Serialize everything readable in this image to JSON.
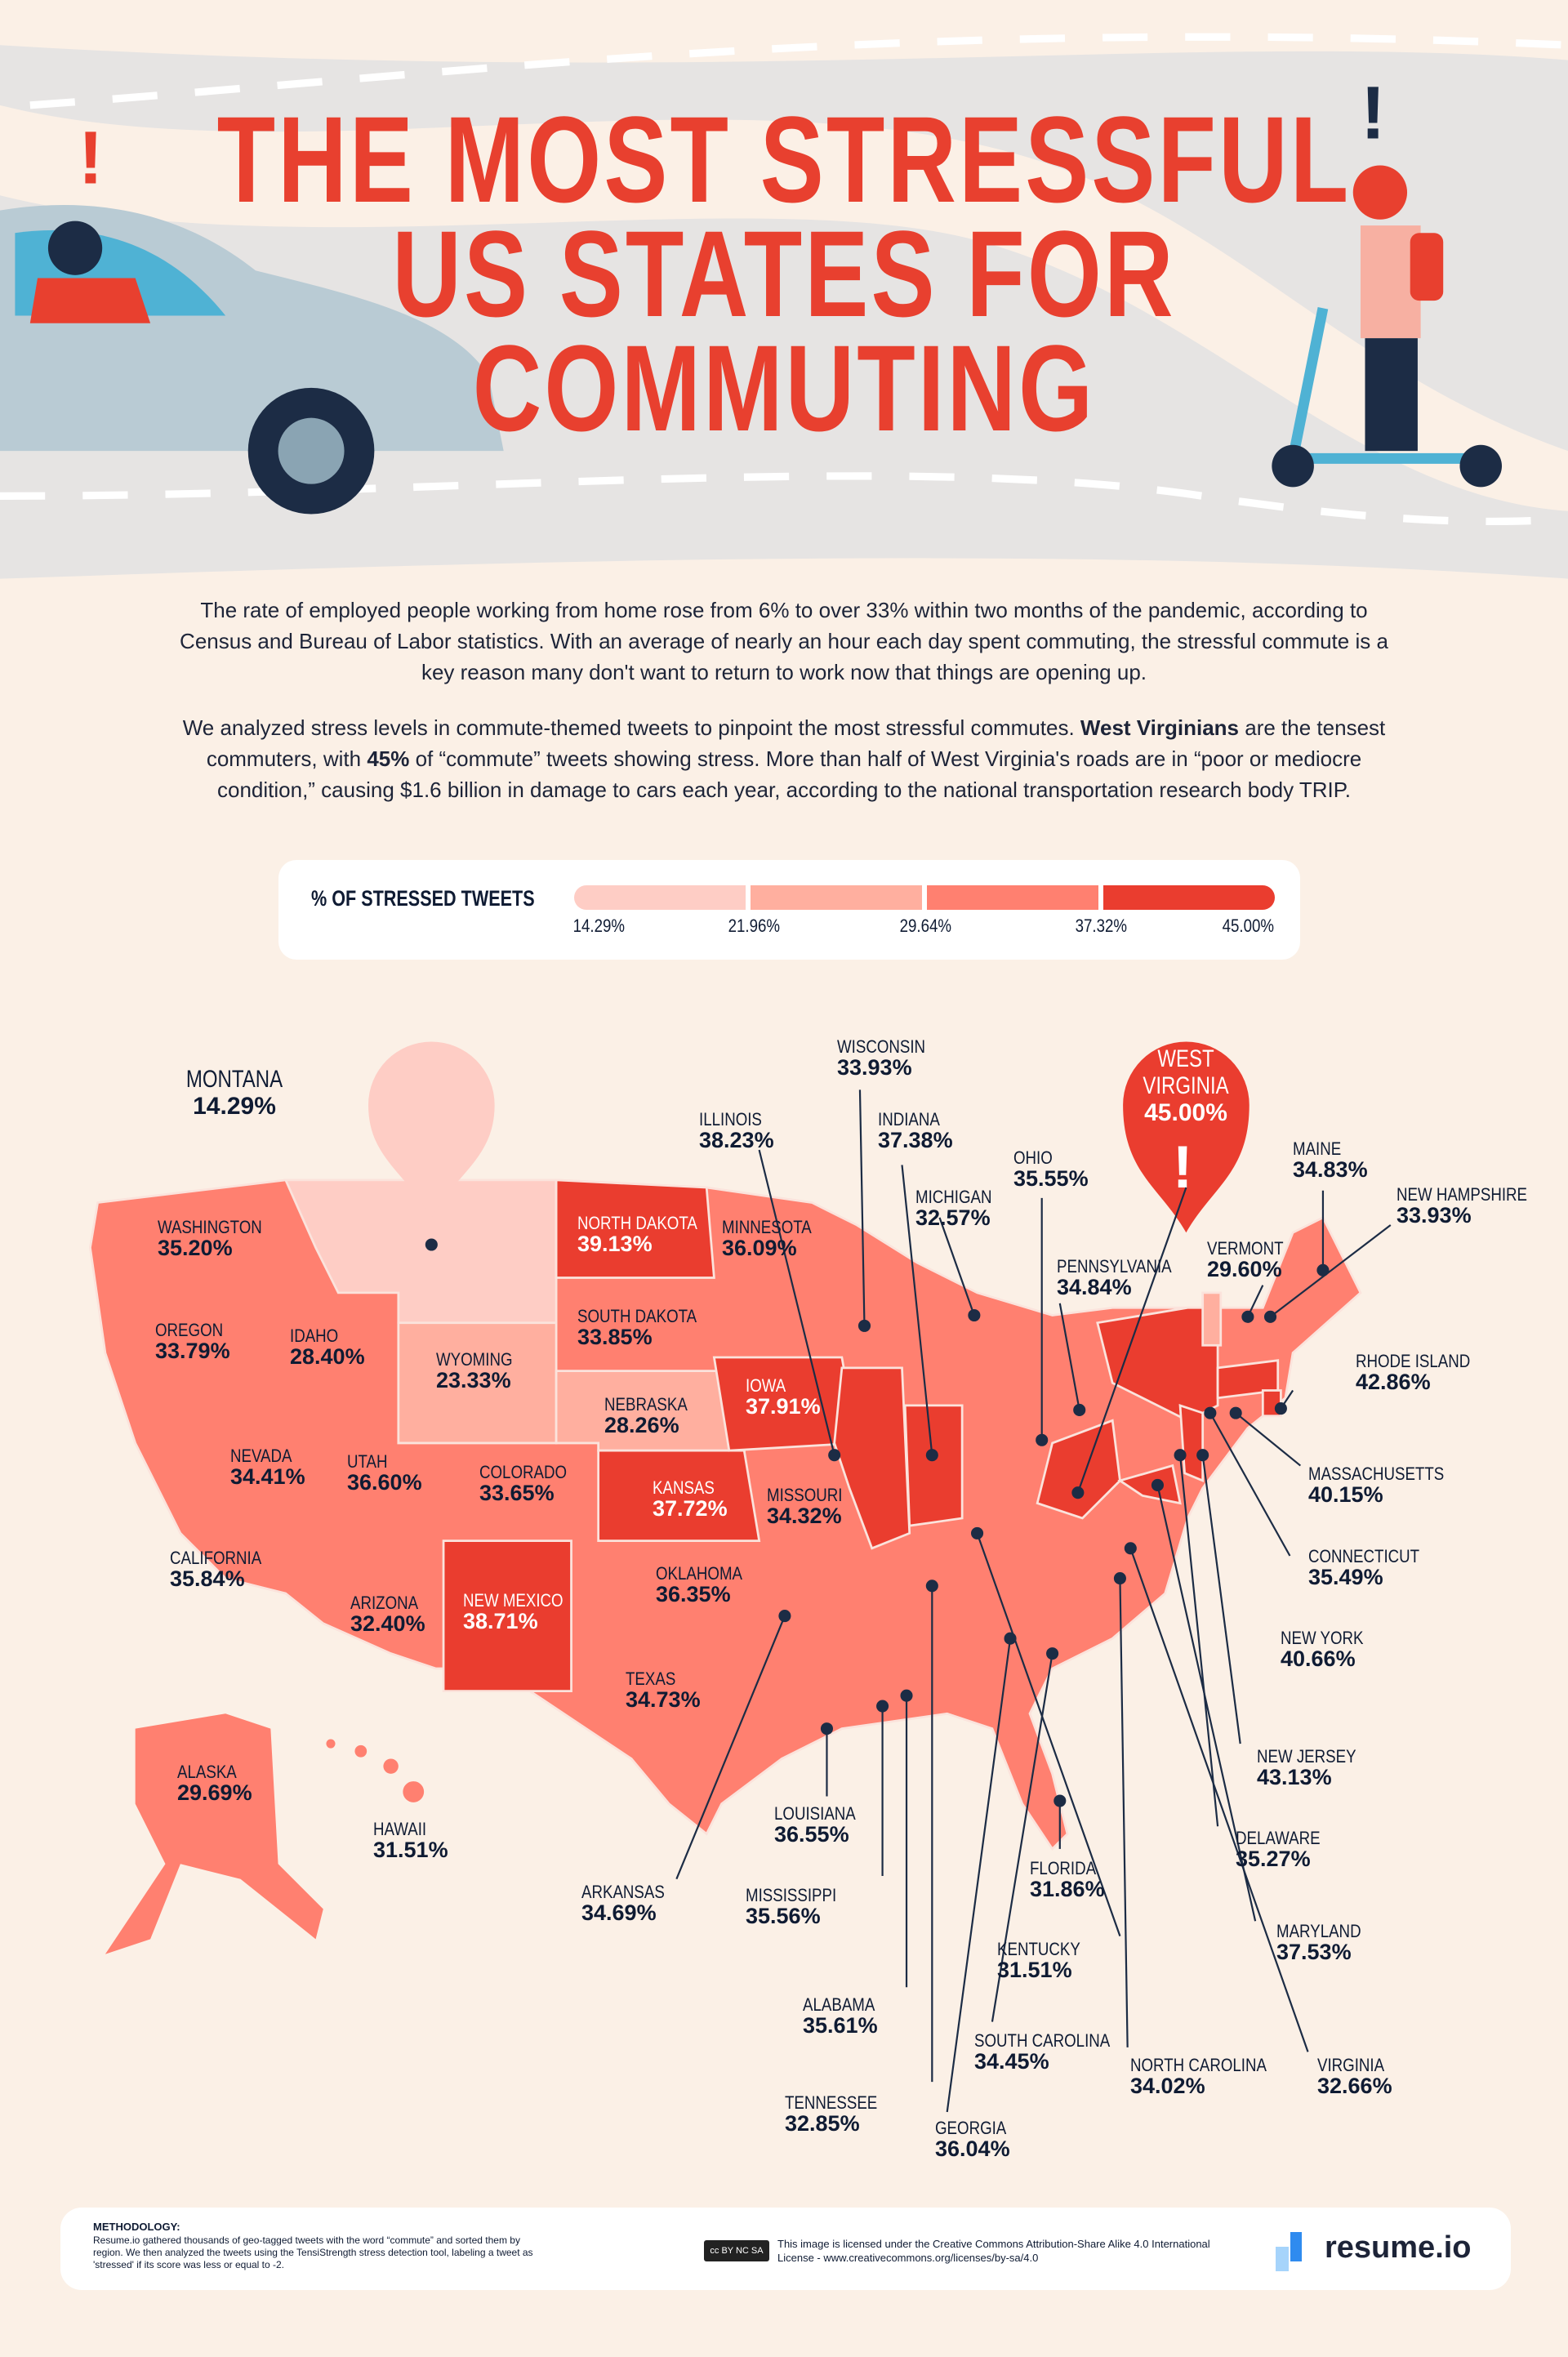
{
  "header": {
    "title_lines": [
      "THE MOST STRESSFUL",
      "US STATES FOR",
      "COMMUTING"
    ],
    "alert_icon": "exclamation-icon"
  },
  "intro": {
    "paragraph1": "The rate of employed people working from home rose from 6% to over 33% within two months of the pandemic, according to Census and Bureau of Labor statistics. With an average of nearly an hour each day spent commuting, the stressful commute is a key reason many don't want to return to work now that things are opening up.",
    "paragraph2_parts": [
      "We analyzed stress levels in commute-themed tweets to pinpoint the most stressful commutes. ",
      "West Virginians",
      " are the tensest commuters, with ",
      "45%",
      " of “commute” tweets showing stress. More than half of West Virginia's roads are in “poor or mediocre condition,” causing $1.6 billion in damage to cars each year, according to the national transportation research body TRIP."
    ]
  },
  "legend": {
    "title": "% OF STRESSED TWEETS",
    "ticks": [
      "14.29%",
      "21.96%",
      "29.64%",
      "37.32%",
      "45.00%"
    ],
    "colors": [
      "#fecdc5",
      "#ffaf9f",
      "#ff8070",
      "#ea3d2f"
    ]
  },
  "colors": {
    "background": "#fbf0e6",
    "title": "#e8402f",
    "road": "#dfe0e2",
    "map_default": "#ff8070",
    "dark": "#ea3d2f",
    "light": "#fecdc5",
    "mid_light": "#ffaf9f",
    "text": "#0f1b33"
  },
  "states": [
    {
      "name": "MONTANA",
      "value": "14.29%"
    },
    {
      "name": "WASHINGTON",
      "value": "35.20%"
    },
    {
      "name": "OREGON",
      "value": "33.79%"
    },
    {
      "name": "IDAHO",
      "value": "28.40%"
    },
    {
      "name": "WYOMING",
      "value": "23.33%"
    },
    {
      "name": "NEVADA",
      "value": "34.41%"
    },
    {
      "name": "UTAH",
      "value": "36.60%"
    },
    {
      "name": "COLORADO",
      "value": "33.65%"
    },
    {
      "name": "CALIFORNIA",
      "value": "35.84%"
    },
    {
      "name": "ARIZONA",
      "value": "32.40%"
    },
    {
      "name": "NEW MEXICO",
      "value": "38.71%"
    },
    {
      "name": "NORTH DAKOTA",
      "value": "39.13%"
    },
    {
      "name": "SOUTH DAKOTA",
      "value": "33.85%"
    },
    {
      "name": "NEBRASKA",
      "value": "28.26%"
    },
    {
      "name": "KANSAS",
      "value": "37.72%"
    },
    {
      "name": "OKLAHOMA",
      "value": "36.35%"
    },
    {
      "name": "TEXAS",
      "value": "34.73%"
    },
    {
      "name": "MINNESOTA",
      "value": "36.09%"
    },
    {
      "name": "IOWA",
      "value": "37.91%"
    },
    {
      "name": "MISSOURI",
      "value": "34.32%"
    },
    {
      "name": "WISCONSIN",
      "value": "33.93%"
    },
    {
      "name": "ILLINOIS",
      "value": "38.23%"
    },
    {
      "name": "INDIANA",
      "value": "37.38%"
    },
    {
      "name": "MICHIGAN",
      "value": "32.57%"
    },
    {
      "name": "OHIO",
      "value": "35.55%"
    },
    {
      "name": "PENNSYLVANIA",
      "value": "34.84%"
    },
    {
      "name": "WEST VIRGINIA",
      "value": "45.00%"
    },
    {
      "name": "MAINE",
      "value": "34.83%"
    },
    {
      "name": "NEW HAMPSHIRE",
      "value": "33.93%"
    },
    {
      "name": "VERMONT",
      "value": "29.60%"
    },
    {
      "name": "RHODE ISLAND",
      "value": "42.86%"
    },
    {
      "name": "MASSACHUSETTS",
      "value": "40.15%"
    },
    {
      "name": "CONNECTICUT",
      "value": "35.49%"
    },
    {
      "name": "NEW YORK",
      "value": "40.66%"
    },
    {
      "name": "NEW JERSEY",
      "value": "43.13%"
    },
    {
      "name": "DELAWARE",
      "value": "35.27%"
    },
    {
      "name": "MARYLAND",
      "value": "37.53%"
    },
    {
      "name": "VIRGINIA",
      "value": "32.66%"
    },
    {
      "name": "NORTH CAROLINA",
      "value": "34.02%"
    },
    {
      "name": "SOUTH CAROLINA",
      "value": "34.45%"
    },
    {
      "name": "KENTUCKY",
      "value": "31.51%"
    },
    {
      "name": "FLORIDA",
      "value": "31.86%"
    },
    {
      "name": "GEORGIA",
      "value": "36.04%"
    },
    {
      "name": "TENNESSEE",
      "value": "32.85%"
    },
    {
      "name": "ALABAMA",
      "value": "35.61%"
    },
    {
      "name": "MISSISSIPPI",
      "value": "35.56%"
    },
    {
      "name": "LOUISIANA",
      "value": "36.55%"
    },
    {
      "name": "ARKANSAS",
      "value": "34.69%"
    },
    {
      "name": "ALASKA",
      "value": "29.69%"
    },
    {
      "name": "HAWAII",
      "value": "31.51%"
    }
  ],
  "footer": {
    "methodology_heading": "METHODOLOGY:",
    "methodology_text": "Resume.io gathered thousands of geo-tagged tweets with the word “commute” and sorted them by region. We then analyzed the tweets using the TensiStrength stress detection tool, labeling a tweet as 'stressed' if its score was less or equal to -2.",
    "cc_badge": "cc BY NC SA",
    "license": "This image is licensed under the Creative Commons  Attribution-Share Alike 4.0 International License - www.creativecommons.org/licenses/by-sa/4.0",
    "logo_text": "resume.io"
  }
}
